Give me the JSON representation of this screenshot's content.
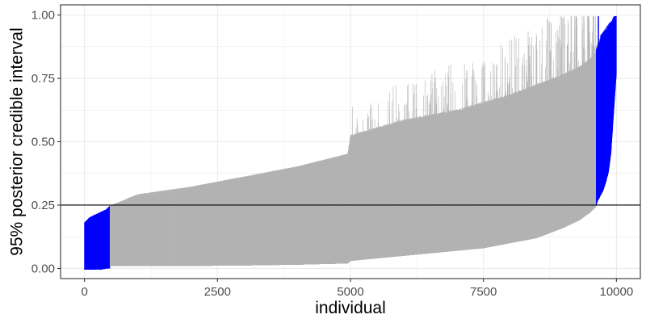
{
  "chart_data": {
    "type": "interval",
    "title": "",
    "xlabel": "individual",
    "ylabel": "95% posterior credible interval",
    "xlim": [
      -450,
      10450
    ],
    "ylim": [
      -0.04,
      1.04
    ],
    "x_ticks": [
      0,
      2500,
      5000,
      7500,
      10000
    ],
    "x_tick_labels": [
      "0",
      "2500",
      "5000",
      "7500",
      "10000"
    ],
    "y_ticks": [
      0.0,
      0.25,
      0.5,
      0.75,
      1.0
    ],
    "y_tick_labels": [
      "0.00",
      "0.25",
      "0.50",
      "0.75",
      "1.00"
    ],
    "grid": true,
    "reference_line": {
      "y": 0.25,
      "color": "#000000"
    },
    "n_individuals": 10000,
    "colors": {
      "excludes_reference": "#0000ff",
      "includes_reference": "#b3b3b3",
      "panel_border": "#333333",
      "grid": "#ebebeb"
    },
    "groups": [
      {
        "status": "upper bound below 0.25",
        "color": "#0000ff",
        "x": [
          0,
          480
        ]
      },
      {
        "status": "interval contains 0.25",
        "color": "#b3b3b3",
        "x": [
          480,
          9620
        ]
      },
      {
        "status": "lower bound above 0.25",
        "color": "#0000ff",
        "x": [
          9620,
          10000
        ]
      }
    ],
    "lower_bound_profile": {
      "x": [
        0,
        100,
        200,
        300,
        400,
        480,
        1000,
        2000,
        3000,
        4000,
        4950,
        5000,
        6000,
        7000,
        7500,
        8000,
        8500,
        9000,
        9300,
        9500,
        9600,
        9620,
        9650,
        9700,
        9750,
        9800,
        9850,
        9900,
        9950,
        10000
      ],
      "y": [
        0.0,
        0.0,
        0.005,
        0.005,
        0.01,
        0.01,
        0.01,
        0.01,
        0.012,
        0.015,
        0.02,
        0.03,
        0.05,
        0.07,
        0.08,
        0.1,
        0.12,
        0.16,
        0.19,
        0.22,
        0.24,
        0.25,
        0.27,
        0.29,
        0.31,
        0.34,
        0.38,
        0.46,
        0.62,
        0.77
      ]
    },
    "upper_bound_profile": {
      "x": [
        0,
        100,
        200,
        300,
        400,
        480,
        1000,
        2000,
        3000,
        4000,
        4950,
        5000,
        6000,
        7000,
        7500,
        8000,
        8500,
        9000,
        9300,
        9500,
        9600,
        9620,
        9650,
        9700,
        9800,
        9900,
        10000
      ],
      "y": [
        0.18,
        0.2,
        0.21,
        0.22,
        0.23,
        0.245,
        0.29,
        0.32,
        0.36,
        0.4,
        0.45,
        0.52,
        0.58,
        0.62,
        0.65,
        0.68,
        0.72,
        0.76,
        0.79,
        0.82,
        0.84,
        0.86,
        0.88,
        0.9,
        0.93,
        0.96,
        0.99
      ]
    }
  }
}
